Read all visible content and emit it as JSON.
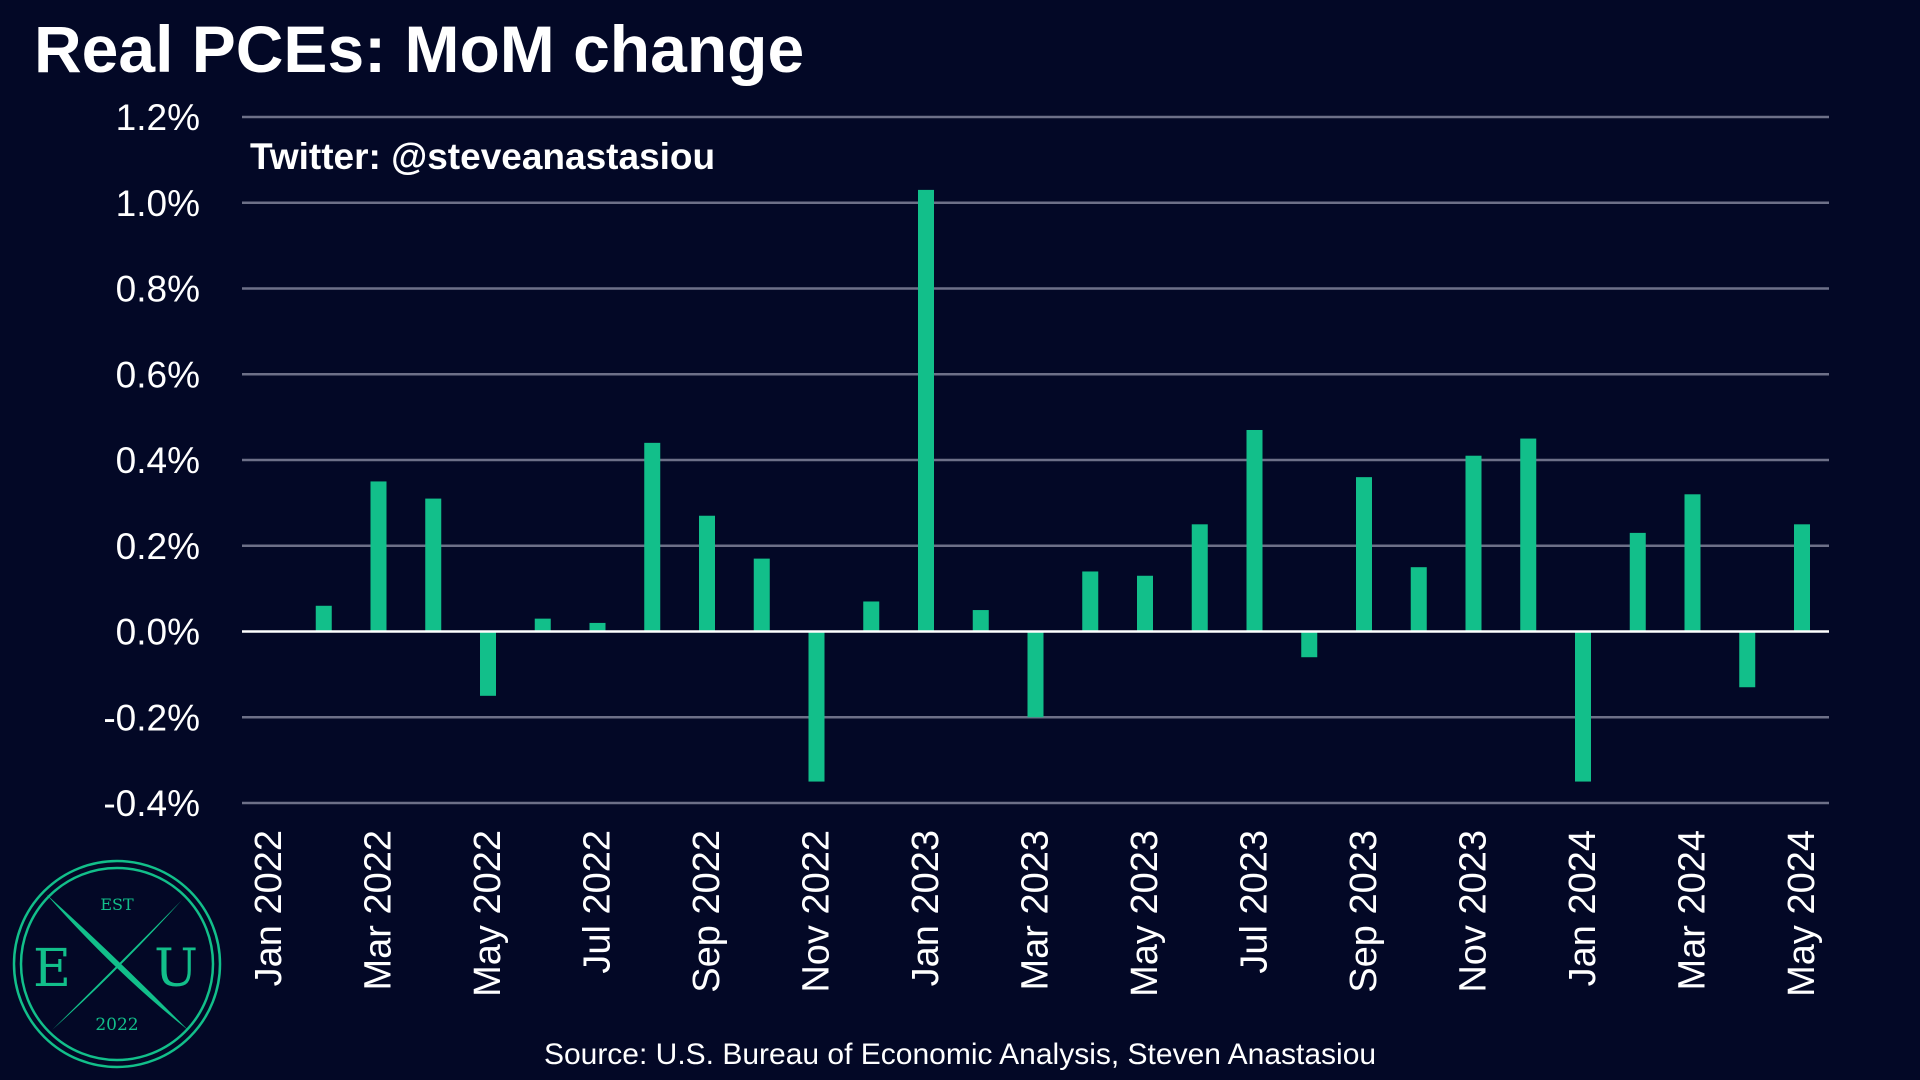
{
  "chart_data": {
    "type": "bar",
    "title": "Real PCEs: MoM change",
    "watermark": "Twitter: @steveanastasiou",
    "source": "Source: U.S. Bureau of Economic Analysis, Steven Anastasiou",
    "xlabel": "",
    "ylabel": "",
    "ylim": [
      -0.4,
      1.2
    ],
    "ytick_values": [
      -0.4,
      -0.2,
      0.0,
      0.2,
      0.4,
      0.6,
      0.8,
      1.0,
      1.2
    ],
    "ytick_labels": [
      "-0.4%",
      "-0.2%",
      "0.0%",
      "0.2%",
      "0.4%",
      "0.6%",
      "0.8%",
      "1.0%",
      "1.2%"
    ],
    "categories": [
      "Jan 2022",
      "Feb 2022",
      "Mar 2022",
      "Apr 2022",
      "May 2022",
      "Jun 2022",
      "Jul 2022",
      "Aug 2022",
      "Sep 2022",
      "Oct 2022",
      "Nov 2022",
      "Dec 2022",
      "Jan 2023",
      "Feb 2023",
      "Mar 2023",
      "Apr 2023",
      "May 2023",
      "Jun 2023",
      "Jul 2023",
      "Aug 2023",
      "Sep 2023",
      "Oct 2023",
      "Nov 2023",
      "Dec 2023",
      "Jan 2024",
      "Feb 2024",
      "Mar 2024",
      "Apr 2024",
      "May 2024"
    ],
    "xtick_labels": [
      "Jan 2022",
      "",
      "Mar 2022",
      "",
      "May 2022",
      "",
      "Jul 2022",
      "",
      "Sep 2022",
      "",
      "Nov 2022",
      "",
      "Jan 2023",
      "",
      "Mar 2023",
      "",
      "May 2023",
      "",
      "Jul 2023",
      "",
      "Sep 2023",
      "",
      "Nov 2023",
      "",
      "Jan 2024",
      "",
      "Mar 2024",
      "",
      "May 2024"
    ],
    "values": [
      0.0,
      0.06,
      0.35,
      0.31,
      -0.15,
      0.03,
      0.02,
      0.44,
      0.27,
      0.17,
      -0.35,
      0.07,
      1.03,
      0.05,
      -0.2,
      0.14,
      0.13,
      0.25,
      0.47,
      -0.06,
      0.36,
      0.15,
      0.41,
      0.45,
      -0.35,
      0.23,
      0.32,
      -0.13,
      0.25
    ],
    "grid": true,
    "bar_color": "#12bf8a",
    "background_color": "#030826"
  },
  "logo": {
    "top": "EST",
    "left": "E",
    "right": "U",
    "bottom": "2022"
  }
}
